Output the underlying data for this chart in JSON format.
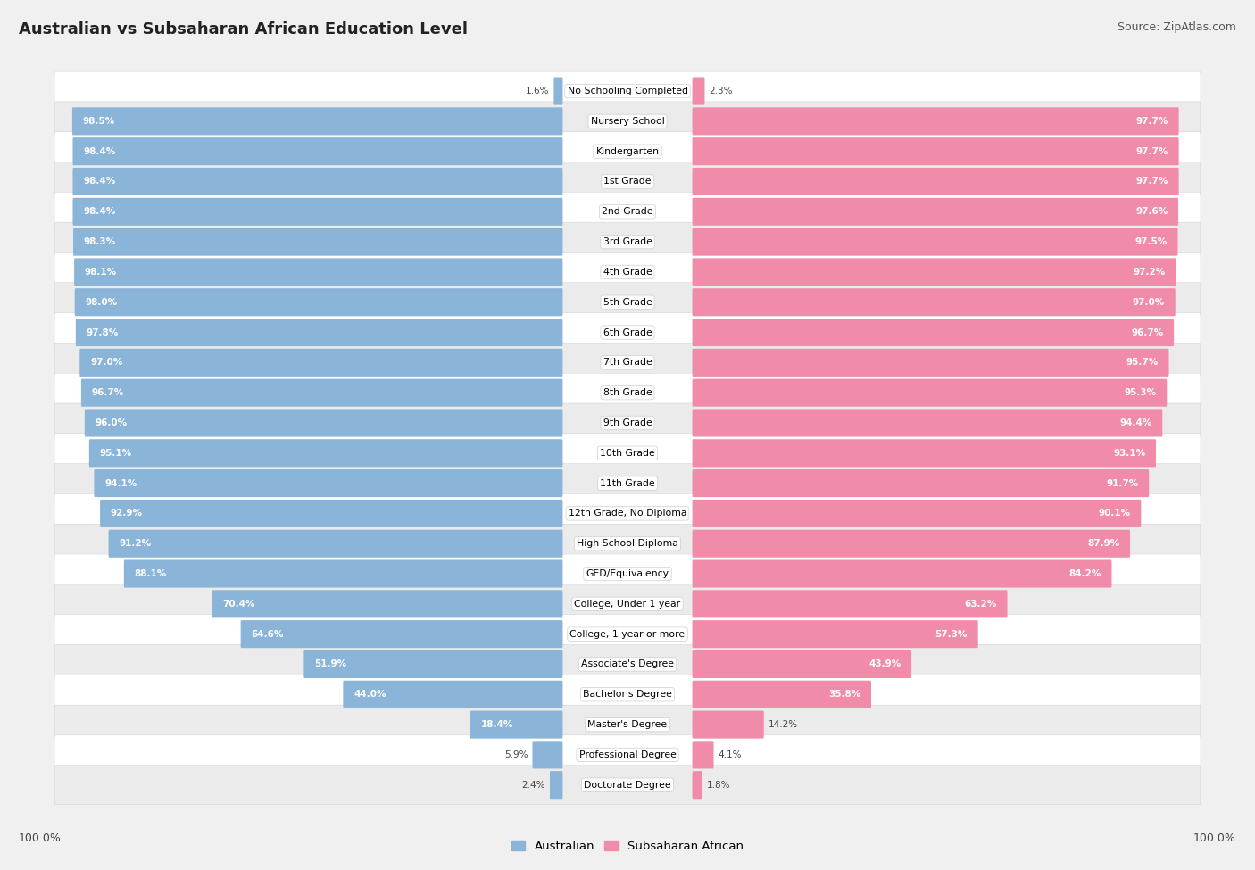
{
  "title": "Australian vs Subsaharan African Education Level",
  "source": "Source: ZipAtlas.com",
  "categories": [
    "No Schooling Completed",
    "Nursery School",
    "Kindergarten",
    "1st Grade",
    "2nd Grade",
    "3rd Grade",
    "4th Grade",
    "5th Grade",
    "6th Grade",
    "7th Grade",
    "8th Grade",
    "9th Grade",
    "10th Grade",
    "11th Grade",
    "12th Grade, No Diploma",
    "High School Diploma",
    "GED/Equivalency",
    "College, Under 1 year",
    "College, 1 year or more",
    "Associate's Degree",
    "Bachelor's Degree",
    "Master's Degree",
    "Professional Degree",
    "Doctorate Degree"
  ],
  "australian": [
    1.6,
    98.5,
    98.4,
    98.4,
    98.4,
    98.3,
    98.1,
    98.0,
    97.8,
    97.0,
    96.7,
    96.0,
    95.1,
    94.1,
    92.9,
    91.2,
    88.1,
    70.4,
    64.6,
    51.9,
    44.0,
    18.4,
    5.9,
    2.4
  ],
  "subsaharan": [
    2.3,
    97.7,
    97.7,
    97.7,
    97.6,
    97.5,
    97.2,
    97.0,
    96.7,
    95.7,
    95.3,
    94.4,
    93.1,
    91.7,
    90.1,
    87.9,
    84.2,
    63.2,
    57.3,
    43.9,
    35.8,
    14.2,
    4.1,
    1.8
  ],
  "aus_color": "#8ab4d8",
  "sub_color": "#f08caa",
  "bg_color": "#f0f0f0",
  "row_white": "#ffffff",
  "row_gray": "#ebebeb",
  "title_fontsize": 13,
  "source_fontsize": 9,
  "label_fontsize": 7.8,
  "value_fontsize": 7.5,
  "legend_fontsize": 9.5,
  "footer_fontsize": 9
}
